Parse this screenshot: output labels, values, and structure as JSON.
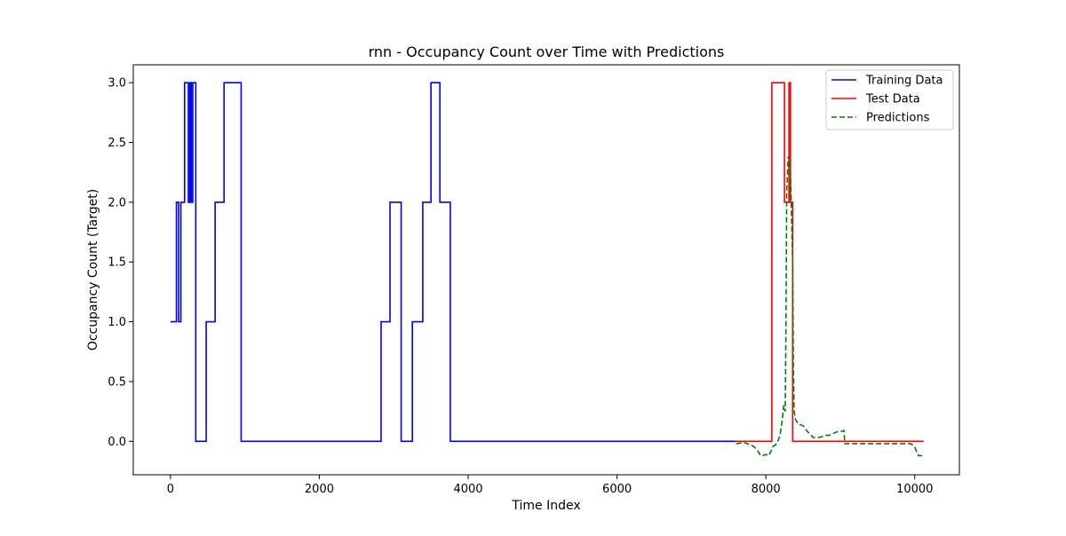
{
  "chart_data": {
    "type": "line",
    "title": "rnn - Occupancy Count over Time with Predictions",
    "xlabel": "Time Index",
    "ylabel": "Occupancy Count (Target)",
    "xlim": [
      -500,
      10600
    ],
    "ylim": [
      -0.28,
      3.15
    ],
    "xticks": [
      0,
      2000,
      4000,
      6000,
      8000,
      10000
    ],
    "yticks": [
      0.0,
      0.5,
      1.0,
      1.5,
      2.0,
      2.5,
      3.0
    ],
    "xtick_labels": [
      "0",
      "2000",
      "4000",
      "6000",
      "8000",
      "10000"
    ],
    "ytick_labels": [
      "0.0",
      "0.5",
      "1.0",
      "1.5",
      "2.0",
      "2.5",
      "3.0"
    ],
    "grid": false,
    "legend_position": "top-right",
    "series": [
      {
        "name": "Training Data",
        "color": "#0000ff",
        "style": "solid",
        "step": true,
        "x": [
          0,
          80,
          80,
          110,
          110,
          140,
          140,
          190,
          190,
          240,
          240,
          260,
          260,
          280,
          280,
          300,
          300,
          340,
          340,
          480,
          480,
          600,
          600,
          720,
          720,
          950,
          950,
          2830,
          2830,
          2950,
          2950,
          3100,
          3100,
          3250,
          3250,
          3390,
          3390,
          3500,
          3500,
          3620,
          3620,
          3760,
          3760,
          7600
        ],
        "y": [
          1,
          1,
          2,
          2,
          1,
          1,
          2,
          2,
          3,
          3,
          2,
          2,
          3,
          3,
          2,
          2,
          3,
          3,
          0,
          0,
          1,
          1,
          2,
          2,
          3,
          3,
          0,
          0,
          1,
          1,
          2,
          2,
          0,
          0,
          1,
          1,
          2,
          2,
          3,
          3,
          2,
          2,
          0,
          0
        ]
      },
      {
        "name": "Test Data",
        "color": "#ff0000",
        "style": "solid",
        "step": true,
        "x": [
          7600,
          8080,
          8080,
          8250,
          8250,
          8310,
          8310,
          8330,
          8330,
          8360,
          8360,
          10120
        ],
        "y": [
          0,
          0,
          3,
          3,
          2,
          2,
          3,
          3,
          2,
          2,
          0,
          0
        ]
      },
      {
        "name": "Predictions",
        "color": "#008000",
        "style": "dashed",
        "step": false,
        "x": [
          7600,
          7700,
          7800,
          7850,
          7900,
          7930,
          7960,
          8000,
          8040,
          8070,
          8100,
          8130,
          8160,
          8190,
          8220,
          8240,
          8260,
          8270,
          8280,
          8300,
          8320,
          8330,
          8340,
          8350,
          8360,
          8370,
          8380,
          8400,
          8430,
          8460,
          8500,
          8560,
          8640,
          8700,
          8760,
          8800,
          8850,
          8880,
          8920,
          8960,
          9000,
          9050,
          9060,
          9100,
          9200,
          9400,
          9600,
          9800,
          9950,
          10000,
          10050,
          10100
        ],
        "y": [
          -0.02,
          -0.01,
          -0.03,
          -0.05,
          -0.09,
          -0.12,
          -0.12,
          -0.11,
          -0.12,
          -0.08,
          -0.04,
          -0.03,
          0.0,
          0.05,
          0.18,
          0.3,
          0.25,
          1.0,
          2.1,
          2.38,
          2.35,
          2.25,
          2.0,
          1.75,
          1.5,
          0.6,
          0.25,
          0.18,
          0.15,
          0.14,
          0.13,
          0.08,
          0.03,
          0.03,
          0.04,
          0.05,
          0.05,
          0.06,
          0.07,
          0.08,
          0.08,
          0.09,
          -0.02,
          -0.02,
          -0.02,
          -0.02,
          -0.02,
          -0.02,
          -0.02,
          -0.05,
          -0.12,
          -0.12
        ]
      }
    ]
  }
}
